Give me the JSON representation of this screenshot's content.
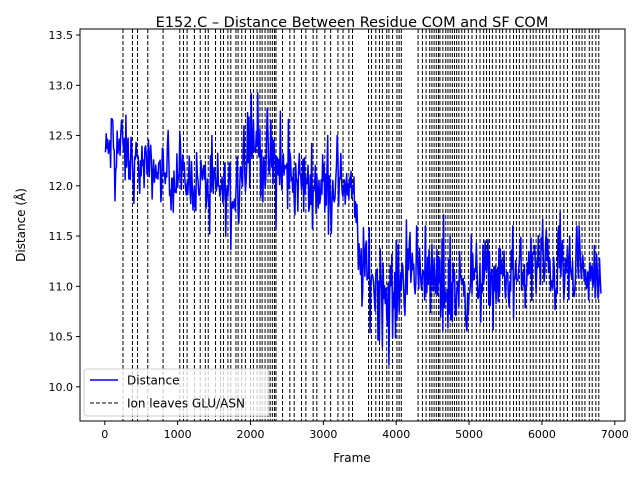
{
  "chart_data": {
    "type": "line",
    "title": "E152.C – Distance Between Residue COM and SF COM",
    "xlabel": "Frame",
    "ylabel": "Distance (Å)",
    "xlim": [
      -340,
      7140
    ],
    "ylim": [
      9.66,
      13.56
    ],
    "xticks": [
      0,
      1000,
      2000,
      3000,
      4000,
      5000,
      6000,
      7000
    ],
    "xtick_labels": [
      "0",
      "1000",
      "2000",
      "3000",
      "4000",
      "5000",
      "6000",
      "7000"
    ],
    "yticks": [
      10.0,
      10.5,
      11.0,
      11.5,
      12.0,
      12.5,
      13.0,
      13.5
    ],
    "ytick_labels": [
      "10.0",
      "10.5",
      "11.0",
      "11.5",
      "12.0",
      "12.5",
      "13.0",
      "13.5"
    ],
    "grid": false,
    "legend_position": "lower-left",
    "series": [
      {
        "name": "Distance",
        "color": "#0000ff",
        "style": "solid",
        "x_start": 0,
        "x_end": 6810,
        "x_step": 10,
        "envelope_x": [
          0,
          100,
          200,
          400,
          600,
          800,
          1000,
          1200,
          1400,
          1600,
          1800,
          1900,
          2000,
          2200,
          2400,
          2600,
          2800,
          3000,
          3200,
          3400,
          3450,
          3500,
          3600,
          3700,
          3800,
          3900,
          4000,
          4100,
          4200,
          4400,
          4600,
          4800,
          5000,
          5200,
          5400,
          5600,
          5800,
          6000,
          6200,
          6400,
          6600,
          6810
        ],
        "envelope_lower": [
          12.05,
          11.85,
          11.85,
          11.7,
          11.75,
          11.7,
          11.6,
          11.6,
          11.55,
          11.4,
          11.35,
          11.6,
          11.8,
          11.6,
          11.55,
          11.5,
          11.5,
          11.5,
          11.55,
          11.6,
          11.2,
          10.6,
          10.4,
          10.3,
          10.2,
          10.0,
          10.3,
          10.5,
          10.7,
          10.6,
          10.3,
          10.2,
          10.4,
          10.5,
          10.6,
          10.5,
          10.6,
          10.5,
          10.55,
          10.6,
          10.6,
          10.7
        ],
        "envelope_upper": [
          12.6,
          13.0,
          12.95,
          12.7,
          12.6,
          12.55,
          12.55,
          12.5,
          12.5,
          12.5,
          12.6,
          13.0,
          13.35,
          12.9,
          12.75,
          12.6,
          12.55,
          12.5,
          12.5,
          12.45,
          12.0,
          11.9,
          11.8,
          11.9,
          11.8,
          11.6,
          11.6,
          11.7,
          11.6,
          11.6,
          11.7,
          11.75,
          11.7,
          11.65,
          11.6,
          11.6,
          11.7,
          11.95,
          11.8,
          11.6,
          11.6,
          11.4
        ]
      },
      {
        "name": "Ion leaves GLU/ASN",
        "color": "#000000",
        "style": "dashed",
        "type": "vline",
        "x": [
          250,
          380,
          450,
          590,
          800,
          1030,
          1080,
          1130,
          1230,
          1310,
          1380,
          1420,
          1520,
          1590,
          1630,
          1690,
          1730,
          1800,
          1830,
          1880,
          1930,
          2000,
          2040,
          2090,
          2130,
          2160,
          2200,
          2240,
          2270,
          2300,
          2330,
          2350,
          2440,
          2540,
          2600,
          2700,
          2760,
          2860,
          2910,
          3020,
          3100,
          3200,
          3270,
          3350,
          3400,
          3620,
          3660,
          3720,
          3770,
          3810,
          3870,
          3900,
          3950,
          4010,
          4040,
          4070,
          4300,
          4360,
          4410,
          4460,
          4490,
          4520,
          4550,
          4580,
          4600,
          4640,
          4680,
          4710,
          4740,
          4770,
          4800,
          4830,
          4860,
          4900,
          4940,
          4990,
          5040,
          5100,
          5150,
          5200,
          5240,
          5280,
          5320,
          5370,
          5420,
          5460,
          5510,
          5560,
          5610,
          5650,
          5690,
          5740,
          5790,
          5840,
          5880,
          5920,
          5970,
          6010,
          6060,
          6100,
          6150,
          6200,
          6250,
          6300,
          6350,
          6420,
          6470,
          6510,
          6550,
          6590,
          6650,
          6690,
          6740,
          6780
        ]
      }
    ]
  }
}
